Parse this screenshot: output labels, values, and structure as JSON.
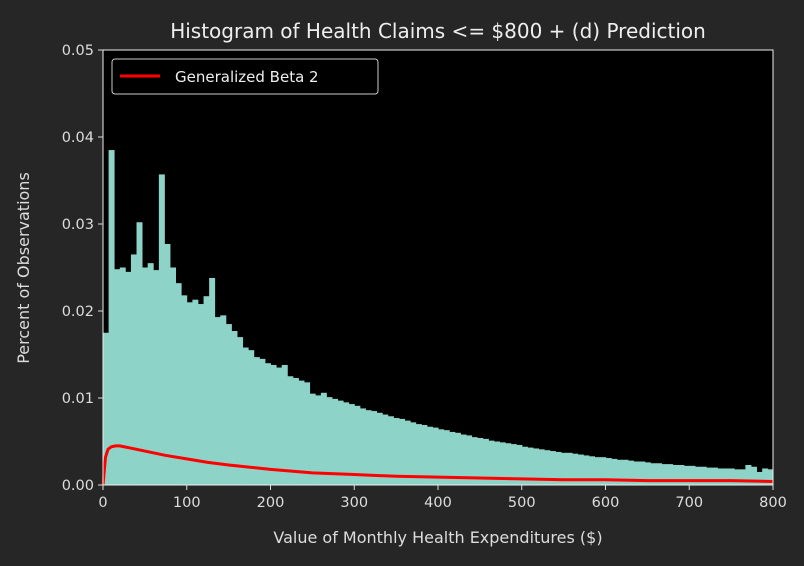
{
  "chart_data": {
    "type": "bar",
    "title": "Histogram of Health Claims <= $800 + (d) Prediction",
    "xlabel": "Value of Monthly Health Expenditures ($)",
    "ylabel": "Percent of Observations",
    "xlim": [
      0,
      800
    ],
    "ylim": [
      0,
      0.05
    ],
    "xticks": [
      "0",
      "100",
      "200",
      "300",
      "400",
      "500",
      "600",
      "700",
      "800"
    ],
    "yticks": [
      "0.00",
      "0.01",
      "0.02",
      "0.03",
      "0.04",
      "0.05"
    ],
    "grid": false,
    "legend_position": "top-left",
    "background_color": "#000000",
    "frame_color": "#262626",
    "bin_width": 6.67,
    "histogram": {
      "color": "#8dd3c7",
      "bin_start": 0,
      "values": [
        0.0175,
        0.0385,
        0.0248,
        0.025,
        0.0245,
        0.0265,
        0.0302,
        0.025,
        0.0255,
        0.0247,
        0.0357,
        0.0277,
        0.025,
        0.0232,
        0.0218,
        0.021,
        0.0213,
        0.0208,
        0.0217,
        0.0238,
        0.0193,
        0.0195,
        0.0185,
        0.0177,
        0.017,
        0.0158,
        0.0155,
        0.0147,
        0.0145,
        0.014,
        0.0138,
        0.0135,
        0.0138,
        0.0125,
        0.0123,
        0.012,
        0.0118,
        0.0105,
        0.0103,
        0.0106,
        0.0101,
        0.0099,
        0.0097,
        0.0095,
        0.0093,
        0.0091,
        0.0088,
        0.0086,
        0.0085,
        0.0083,
        0.0081,
        0.0079,
        0.0077,
        0.0076,
        0.0074,
        0.0072,
        0.007,
        0.0069,
        0.0067,
        0.0066,
        0.0064,
        0.0063,
        0.0061,
        0.006,
        0.0058,
        0.0057,
        0.0055,
        0.0054,
        0.0053,
        0.0051,
        0.005,
        0.0049,
        0.0048,
        0.0047,
        0.0046,
        0.0044,
        0.0043,
        0.0042,
        0.0041,
        0.004,
        0.0039,
        0.0038,
        0.0037,
        0.0037,
        0.0036,
        0.0035,
        0.0034,
        0.0033,
        0.0032,
        0.0032,
        0.0031,
        0.003,
        0.0029,
        0.0029,
        0.0028,
        0.0027,
        0.0027,
        0.0026,
        0.0025,
        0.0025,
        0.0024,
        0.0024,
        0.0023,
        0.0023,
        0.0022,
        0.0022,
        0.0021,
        0.0021,
        0.002,
        0.002,
        0.0019,
        0.0019,
        0.0019,
        0.0018,
        0.0018,
        0.0023,
        0.0021,
        0.0015,
        0.0019,
        0.0018
      ]
    },
    "series": [
      {
        "name": "Generalized Beta 2",
        "color": "#ff0000",
        "x": [
          0,
          3,
          6,
          10,
          15,
          20,
          25,
          30,
          40,
          50,
          60,
          75,
          100,
          125,
          150,
          200,
          250,
          300,
          350,
          400,
          450,
          500,
          550,
          600,
          650,
          700,
          750,
          800
        ],
        "y": [
          0.0,
          0.0032,
          0.0041,
          0.0044,
          0.0045,
          0.0045,
          0.0044,
          0.0043,
          0.0041,
          0.0039,
          0.0037,
          0.0034,
          0.003,
          0.0026,
          0.0023,
          0.0018,
          0.0014,
          0.0012,
          0.001,
          0.0009,
          0.0008,
          0.0007,
          0.0006,
          0.0006,
          0.0005,
          0.0005,
          0.0005,
          0.0004
        ]
      }
    ]
  }
}
